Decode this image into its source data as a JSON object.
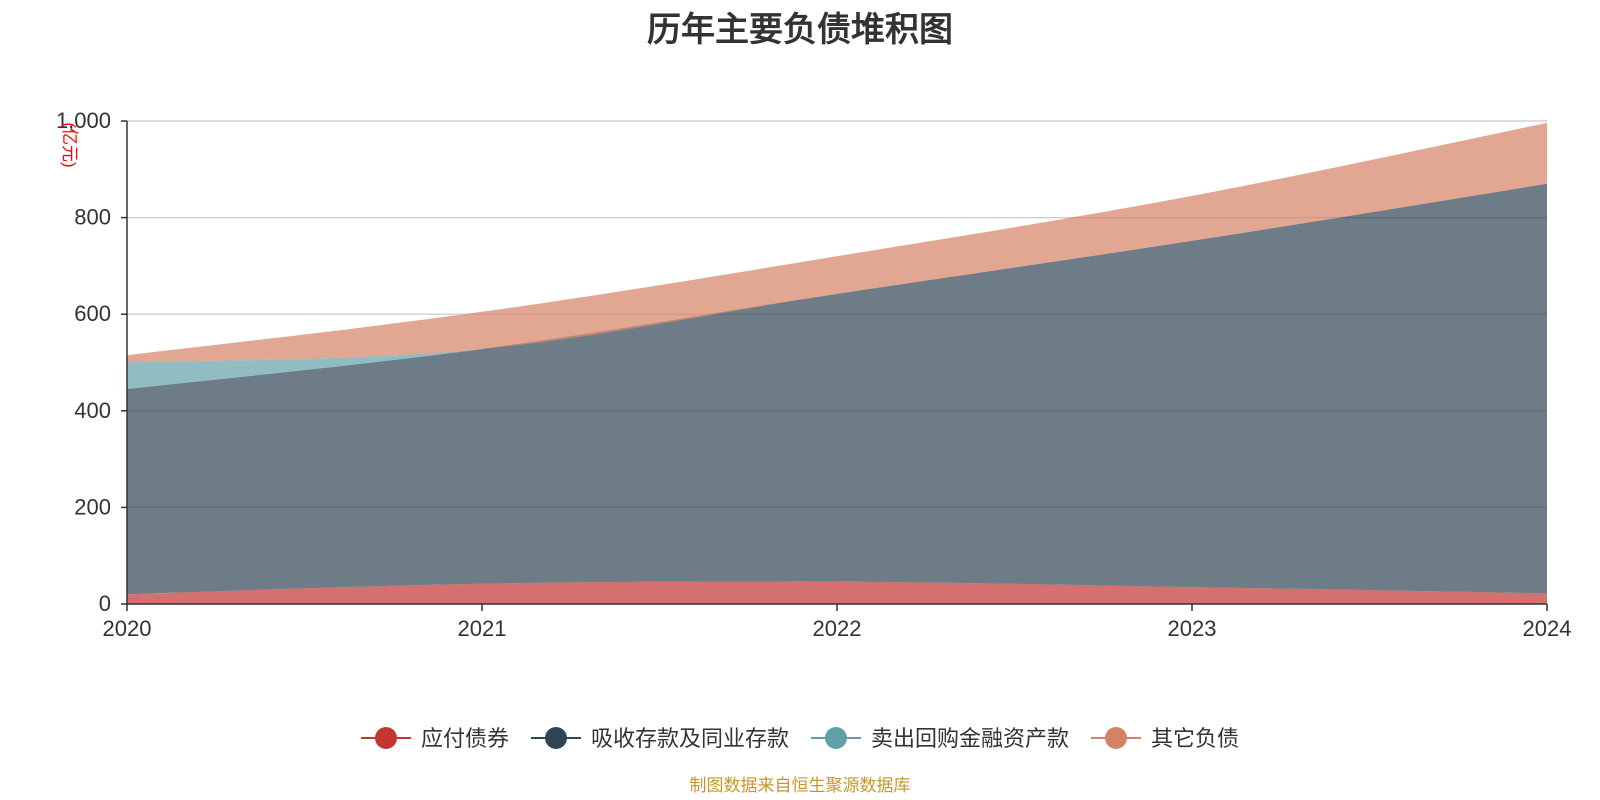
{
  "chart_data": {
    "type": "area",
    "stacked": true,
    "title": "历年主要负债堆积图",
    "unit": "(亿元)",
    "x": [
      "2020",
      "2021",
      "2022",
      "2023",
      "2024"
    ],
    "ylim": [
      0,
      1000
    ],
    "yticks": [
      0,
      200,
      400,
      600,
      800,
      1000
    ],
    "ytick_labels": [
      "0",
      "200",
      "400",
      "600",
      "800",
      "1,000"
    ],
    "grid": true,
    "legend_position": "bottom",
    "series": [
      {
        "name": "应付债券",
        "color": "#c23531",
        "values": [
          20,
          42,
          46,
          35,
          22
        ]
      },
      {
        "name": "吸收存款及同业存款",
        "color": "#2f4554",
        "values": [
          425,
          486,
          596,
          717,
          848
        ]
      },
      {
        "name": "卖出回购金融资产款",
        "color": "#61a0a8",
        "values": [
          55,
          0,
          0,
          0,
          0
        ]
      },
      {
        "name": "其它负债",
        "color": "#d48265",
        "values": [
          15,
          77,
          78,
          93,
          126
        ]
      }
    ]
  },
  "footer": {
    "source": "制图数据来自恒生聚源数据库"
  }
}
